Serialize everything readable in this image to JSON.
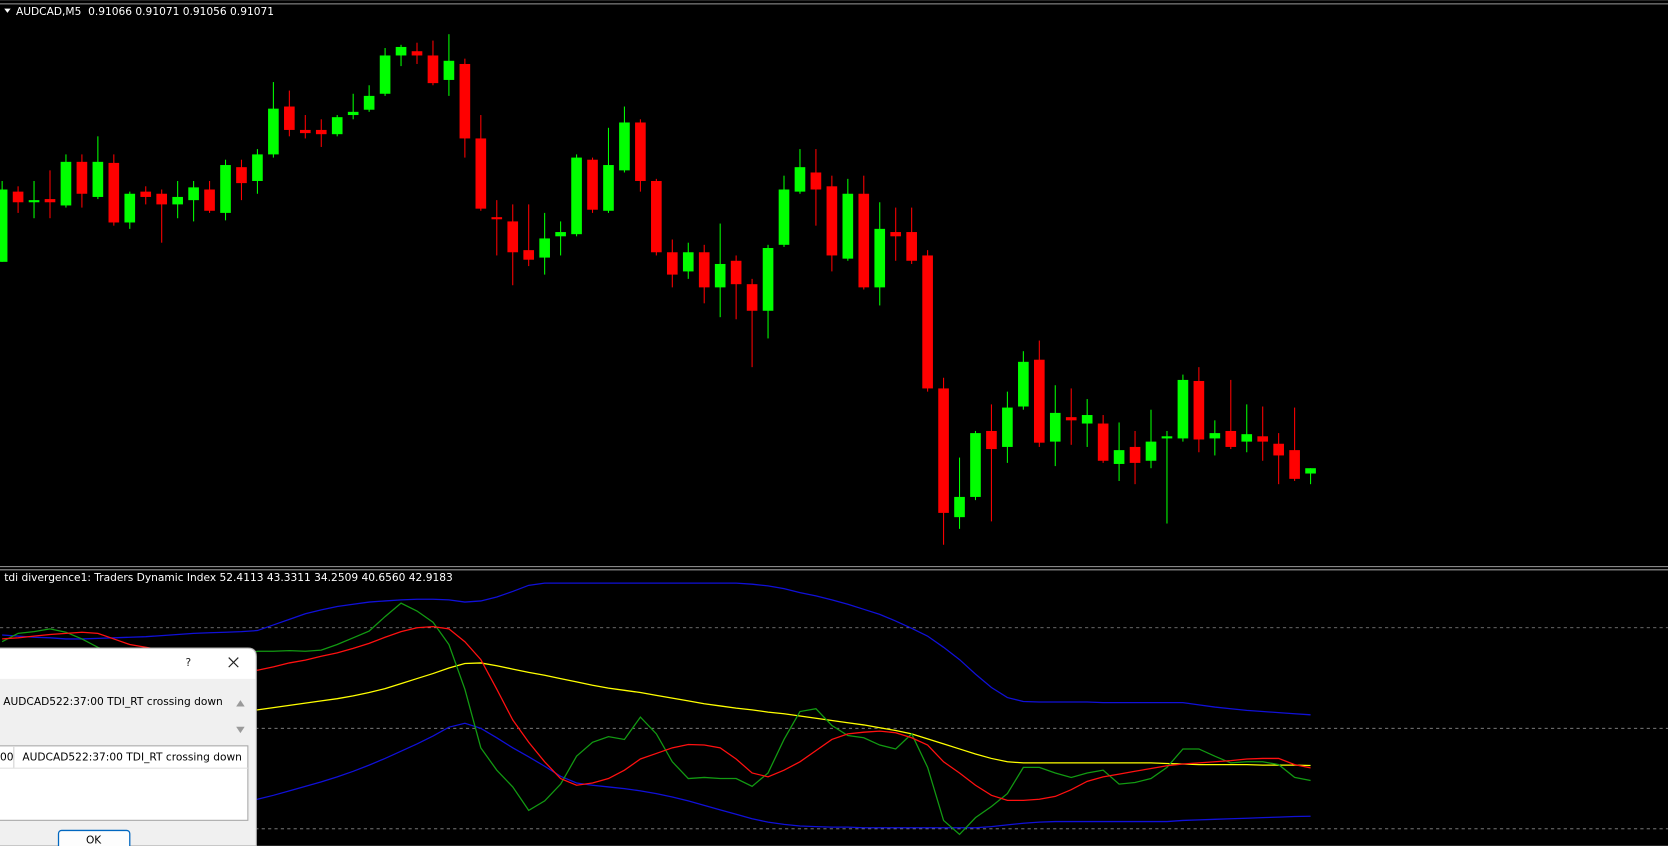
{
  "price_chart": {
    "type": "candlestick",
    "title": "AUDCAD,M5  0.91066 0.91071 0.91056 0.91071",
    "bull_color": "#00ff00",
    "bear_color": "#ff0000",
    "ylim": [
      0.90981,
      0.91511
    ],
    "open": [
      0.91265,
      0.91331,
      0.91321,
      0.91324,
      0.91318,
      0.91359,
      0.91326,
      0.91358,
      0.91302,
      0.91331,
      0.91329,
      0.91319,
      0.91323,
      0.91333,
      0.91311,
      0.91354,
      0.91341,
      0.91366,
      0.91411,
      0.91389,
      0.91389,
      0.91385,
      0.91403,
      0.91408,
      0.91423,
      0.91459,
      0.91463,
      0.91459,
      0.91436,
      0.91451,
      0.91381,
      0.91307,
      0.91303,
      0.91276,
      0.91269,
      0.91289,
      0.91291,
      0.91361,
      0.91313,
      0.91351,
      0.91396,
      0.91341,
      0.91274,
      0.91256,
      0.91274,
      0.91241,
      0.91266,
      0.91244,
      0.91219,
      0.91281,
      0.91331,
      0.91349,
      0.91336,
      0.91268,
      0.91329,
      0.91241,
      0.91293,
      0.91293,
      0.91271,
      0.91146,
      0.91025,
      0.91044,
      0.91106,
      0.91091,
      0.91129,
      0.91173,
      0.91096,
      0.91119,
      0.91113,
      0.91113,
      0.91075,
      0.91091,
      0.91078,
      0.91099,
      0.91099,
      0.91153,
      0.91099,
      0.91106,
      0.91096,
      0.91101,
      0.91094,
      0.91088,
      0.91066
    ],
    "high": [
      0.91341,
      0.91336,
      0.91341,
      0.91351,
      0.91366,
      0.91366,
      0.91383,
      0.91366,
      0.91331,
      0.91336,
      0.91333,
      0.91341,
      0.91341,
      0.91341,
      0.91361,
      0.91361,
      0.91371,
      0.91434,
      0.91426,
      0.91403,
      0.91399,
      0.91403,
      0.91423,
      0.91431,
      0.91466,
      0.91469,
      0.91471,
      0.91473,
      0.91479,
      0.91456,
      0.91403,
      0.91323,
      0.91319,
      0.91319,
      0.91311,
      0.91303,
      0.91366,
      0.91363,
      0.91391,
      0.91411,
      0.91399,
      0.91343,
      0.91286,
      0.91283,
      0.91281,
      0.91301,
      0.91271,
      0.91249,
      0.91281,
      0.91346,
      0.91371,
      0.91371,
      0.91346,
      0.91343,
      0.91346,
      0.91321,
      0.91316,
      0.91316,
      0.91276,
      0.91156,
      0.91081,
      0.91106,
      0.91131,
      0.91143,
      0.91181,
      0.91191,
      0.91149,
      0.91146,
      0.91136,
      0.91121,
      0.91114,
      0.91106,
      0.91126,
      0.91106,
      0.91159,
      0.91166,
      0.91116,
      0.91154,
      0.91131,
      0.91129,
      0.91104,
      0.91128,
      0.91071
    ],
    "low": [
      0.91265,
      0.91311,
      0.91306,
      0.91306,
      0.91316,
      0.91316,
      0.91324,
      0.91299,
      0.91296,
      0.91319,
      0.91283,
      0.91306,
      0.91303,
      0.91311,
      0.91304,
      0.91323,
      0.91329,
      0.91363,
      0.91383,
      0.91381,
      0.91373,
      0.91383,
      0.91399,
      0.91406,
      0.91421,
      0.91449,
      0.91451,
      0.91431,
      0.91421,
      0.91363,
      0.91313,
      0.91271,
      0.91243,
      0.91261,
      0.91253,
      0.91271,
      0.91289,
      0.91311,
      0.91311,
      0.91349,
      0.91331,
      0.91271,
      0.91241,
      0.91249,
      0.91226,
      0.91213,
      0.91211,
      0.91166,
      0.91193,
      0.91279,
      0.91329,
      0.91299,
      0.91256,
      0.91266,
      0.91239,
      0.91224,
      0.91266,
      0.91263,
      0.91143,
      0.90999,
      0.91014,
      0.91041,
      0.91021,
      0.91076,
      0.91126,
      0.91091,
      0.91073,
      0.91093,
      0.91091,
      0.91076,
      0.91059,
      0.91056,
      0.91071,
      0.91019,
      0.91096,
      0.91086,
      0.91083,
      0.91089,
      0.91086,
      0.91078,
      0.91056,
      0.91059,
      0.91056
    ],
    "close": [
      0.91333,
      0.91321,
      0.91323,
      0.91321,
      0.91359,
      0.91329,
      0.91359,
      0.91302,
      0.91329,
      0.91326,
      0.91319,
      0.91326,
      0.91335,
      0.91313,
      0.91356,
      0.91339,
      0.91366,
      0.91409,
      0.91389,
      0.91386,
      0.91385,
      0.91401,
      0.91406,
      0.91421,
      0.91459,
      0.91467,
      0.91459,
      0.91433,
      0.91454,
      0.91381,
      0.91315,
      0.91305,
      0.91274,
      0.91267,
      0.91287,
      0.91293,
      0.91363,
      0.91314,
      0.91356,
      0.91396,
      0.91341,
      0.91274,
      0.91253,
      0.91274,
      0.91241,
      0.91263,
      0.91244,
      0.91219,
      0.91278,
      0.91333,
      0.91354,
      0.91333,
      0.91271,
      0.91329,
      0.91241,
      0.91296,
      0.91289,
      0.91266,
      0.91146,
      0.91029,
      0.91044,
      0.91104,
      0.91089,
      0.91128,
      0.91171,
      0.91095,
      0.91123,
      0.91116,
      0.91121,
      0.91078,
      0.91088,
      0.91076,
      0.91096,
      0.91101,
      0.91154,
      0.91098,
      0.91104,
      0.91091,
      0.91103,
      0.91096,
      0.91083,
      0.91061,
      0.91071
    ]
  },
  "indicator": {
    "type": "line",
    "title": "tdi divergence1: Traders Dynamic Index 52.4113 43.3311 34.2509 40.6560 42.9183",
    "ylim": [
      28.95,
      77.9
    ],
    "levels": [
      68,
      50,
      32
    ],
    "level_color": "#8a8a8a",
    "series": [
      {
        "color": "#1010d8",
        "values": [
          66.7,
          66.5,
          66.3,
          66.2,
          66.0,
          66.0,
          66.1,
          66.2,
          66.3,
          66.4,
          66.6,
          66.8,
          67.0,
          67.1,
          67.2,
          67.3,
          67.5,
          68.5,
          69.5,
          70.5,
          71.2,
          71.8,
          72.2,
          72.6,
          72.8,
          73.0,
          73.1,
          73.1,
          73.0,
          72.6,
          72.8,
          73.5,
          74.5,
          75.6,
          76.0,
          76.0,
          76.0,
          76.0,
          76.0,
          76.0,
          76.0,
          76.0,
          76.0,
          76.0,
          76.0,
          76.0,
          76.0,
          75.8,
          75.5,
          75.0,
          74.3,
          73.7,
          73.0,
          72.2,
          71.3,
          70.4,
          69.2,
          67.9,
          66.5,
          64.5,
          62.3,
          59.7,
          57.3,
          55.5,
          54.8,
          54.7,
          54.7,
          54.7,
          54.7,
          54.6,
          54.6,
          54.6,
          54.6,
          54.6,
          54.6,
          54.2,
          53.8,
          53.5,
          53.2,
          53.0,
          52.8,
          52.6,
          52.4113
        ]
      },
      {
        "color": "#ffff00",
        "values": [
          51.5,
          51.5,
          51.6,
          51.7,
          51.8,
          51.9,
          52.0,
          52.1,
          52.2,
          52.4,
          52.5,
          52.7,
          52.8,
          53.0,
          53.1,
          53.2,
          53.3,
          53.7,
          54.1,
          54.5,
          54.9,
          55.3,
          55.8,
          56.4,
          57.1,
          58.0,
          58.9,
          59.8,
          60.8,
          61.6,
          61.7,
          61.2,
          60.6,
          60.0,
          59.5,
          58.9,
          58.3,
          57.7,
          57.2,
          56.8,
          56.4,
          55.9,
          55.4,
          54.9,
          54.4,
          54.0,
          53.6,
          53.3,
          52.9,
          52.6,
          52.2,
          51.8,
          51.4,
          51.0,
          50.6,
          50.1,
          49.6,
          49.0,
          48.1,
          47.2,
          46.3,
          45.4,
          44.6,
          44.0,
          43.8,
          43.8,
          43.8,
          43.8,
          43.8,
          43.8,
          43.8,
          43.8,
          43.8,
          43.7,
          43.6,
          43.5,
          43.5,
          43.5,
          43.5,
          43.4,
          43.4,
          43.4,
          43.3311
        ]
      },
      {
        "color": "#1010d8",
        "values": [
          34.0,
          34.0,
          34.1,
          34.2,
          34.3,
          34.4,
          34.6,
          34.8,
          35.0,
          35.2,
          35.5,
          35.7,
          36.0,
          36.3,
          36.6,
          36.9,
          37.3,
          38.0,
          38.8,
          39.6,
          40.4,
          41.3,
          42.3,
          43.4,
          44.6,
          45.9,
          47.2,
          48.6,
          50.2,
          50.9,
          50.0,
          48.3,
          46.5,
          44.9,
          43.2,
          41.4,
          40.2,
          39.8,
          39.5,
          39.2,
          38.8,
          38.3,
          37.7,
          37.0,
          36.2,
          35.4,
          34.6,
          33.8,
          33.2,
          32.8,
          32.5,
          32.4,
          32.3,
          32.3,
          32.2,
          32.2,
          32.2,
          32.2,
          32.2,
          32.2,
          32.2,
          32.2,
          32.4,
          32.7,
          33.0,
          33.2,
          33.3,
          33.3,
          33.3,
          33.3,
          33.3,
          33.3,
          33.3,
          33.3,
          33.5,
          33.6,
          33.7,
          33.8,
          33.9,
          34.0,
          34.1,
          34.2,
          34.2509
        ]
      },
      {
        "color": "#129a12",
        "values": [
          65.5,
          67.0,
          67.3,
          67.8,
          67.2,
          66.0,
          64.5,
          63.5,
          63.0,
          62.5,
          62.5,
          62.8,
          63.0,
          62.6,
          62.2,
          63.0,
          63.8,
          63.8,
          63.9,
          63.8,
          64.0,
          65.0,
          66.2,
          67.4,
          70.0,
          72.4,
          71.0,
          69.0,
          65.0,
          57.0,
          46.5,
          42.5,
          39.5,
          35.3,
          37.0,
          40.0,
          45.0,
          47.5,
          48.5,
          48.0,
          52.0,
          49.0,
          44.0,
          41.0,
          41.2,
          41.0,
          41.0,
          39.6,
          42.0,
          48.0,
          53.0,
          53.5,
          50.5,
          48.7,
          48.3,
          47.0,
          46.3,
          49.0,
          43.0,
          33.5,
          31.0,
          34.0,
          36.0,
          38.3,
          43.0,
          43.0,
          42.0,
          41.2,
          42.0,
          42.5,
          40.0,
          40.3,
          41.0,
          43.0,
          46.3,
          46.3,
          45.0,
          43.8,
          44.0,
          44.0,
          43.5,
          41.2,
          40.656
        ]
      },
      {
        "color": "#ff1010",
        "values": [
          66.0,
          66.2,
          66.5,
          66.8,
          67.0,
          67.2,
          67.0,
          66.0,
          65.0,
          64.5,
          64.0,
          63.5,
          63.0,
          62.5,
          62.0,
          61.0,
          60.4,
          61.0,
          61.7,
          62.2,
          62.9,
          63.5,
          64.3,
          65.2,
          66.3,
          67.3,
          68.0,
          68.2,
          67.8,
          65.5,
          62.3,
          57.0,
          51.5,
          47.5,
          44.0,
          41.0,
          39.8,
          40.2,
          41.0,
          42.5,
          44.5,
          45.5,
          46.5,
          47.1,
          47.0,
          46.5,
          44.5,
          42.0,
          41.3,
          42.5,
          44.0,
          46.0,
          48.0,
          49.0,
          49.3,
          49.5,
          49.2,
          48.3,
          47.0,
          44.0,
          42.0,
          39.8,
          38.0,
          37.1,
          37.1,
          37.3,
          37.8,
          39.0,
          40.5,
          41.3,
          41.8,
          42.3,
          42.8,
          43.3,
          43.6,
          43.8,
          44.0,
          44.2,
          44.5,
          44.6,
          44.6,
          43.5,
          42.9183
        ]
      }
    ]
  },
  "alert_dialog": {
    "help": "?",
    "message": "AUDCAD522:37:00 TDI_RT crossing down",
    "list_row": [
      "00",
      "AUDCAD522:37:00 TDI_RT crossing down"
    ],
    "button": "OK"
  }
}
